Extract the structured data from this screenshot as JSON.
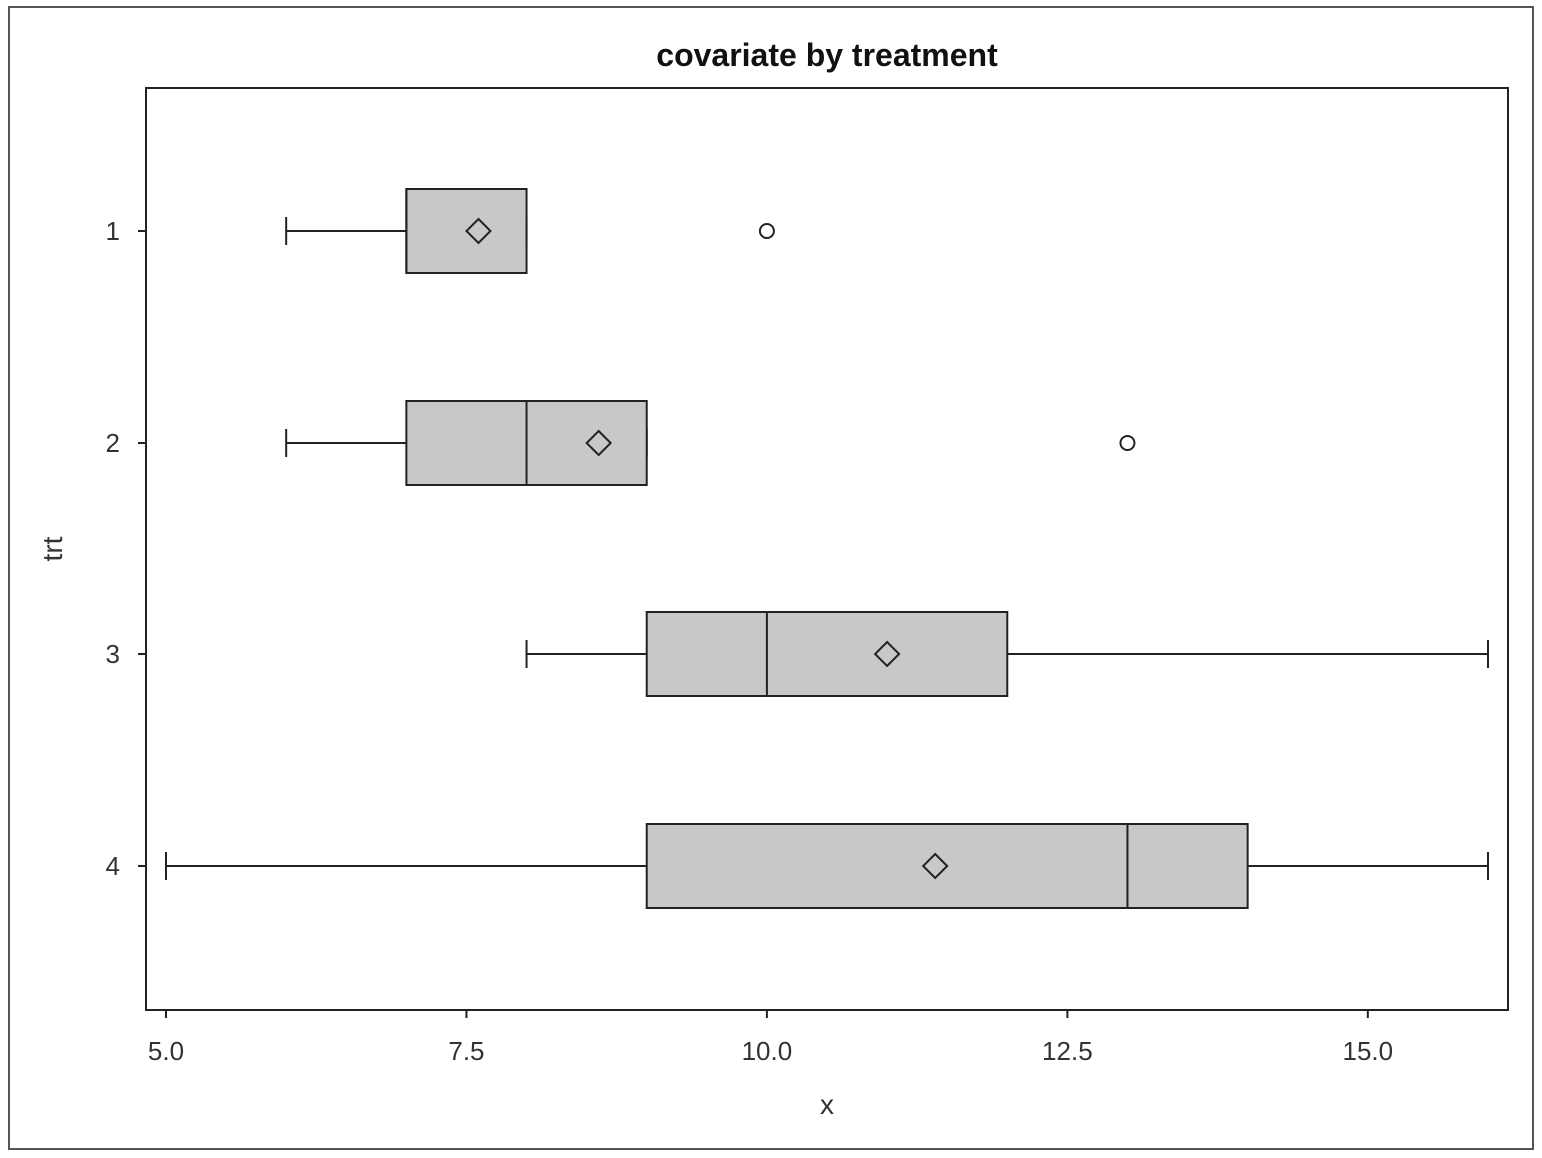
{
  "chart_data": {
    "type": "boxplot",
    "orientation": "horizontal",
    "title": "covariate by treatment",
    "xlabel": "x",
    "ylabel": "trt",
    "xlim": [
      4.25,
      16.6
    ],
    "xticks": [
      "5.0",
      "7.5",
      "10.0",
      "12.5",
      "15.0"
    ],
    "xtick_values": [
      5.0,
      7.5,
      10.0,
      12.5,
      15.0
    ],
    "categories": [
      "1",
      "2",
      "3",
      "4"
    ],
    "box_fill": "#c8c8c8",
    "line_color": "#222222",
    "grid": false,
    "groups": [
      {
        "category": "1",
        "whisker_low": 6,
        "q1": 7,
        "median": 7,
        "q3": 8,
        "whisker_high": 8,
        "mean": 7.6,
        "outliers": [
          10
        ]
      },
      {
        "category": "2",
        "whisker_low": 6,
        "q1": 7,
        "median": 8,
        "q3": 9,
        "whisker_high": 9,
        "mean": 8.6,
        "outliers": [
          13
        ]
      },
      {
        "category": "3",
        "whisker_low": 8,
        "q1": 9,
        "median": 10,
        "q3": 12,
        "whisker_high": 16,
        "mean": 11.0,
        "outliers": []
      },
      {
        "category": "4",
        "whisker_low": 5,
        "q1": 9,
        "median": 13,
        "q3": 14,
        "whisker_high": 16,
        "mean": 11.4,
        "outliers": []
      }
    ]
  }
}
